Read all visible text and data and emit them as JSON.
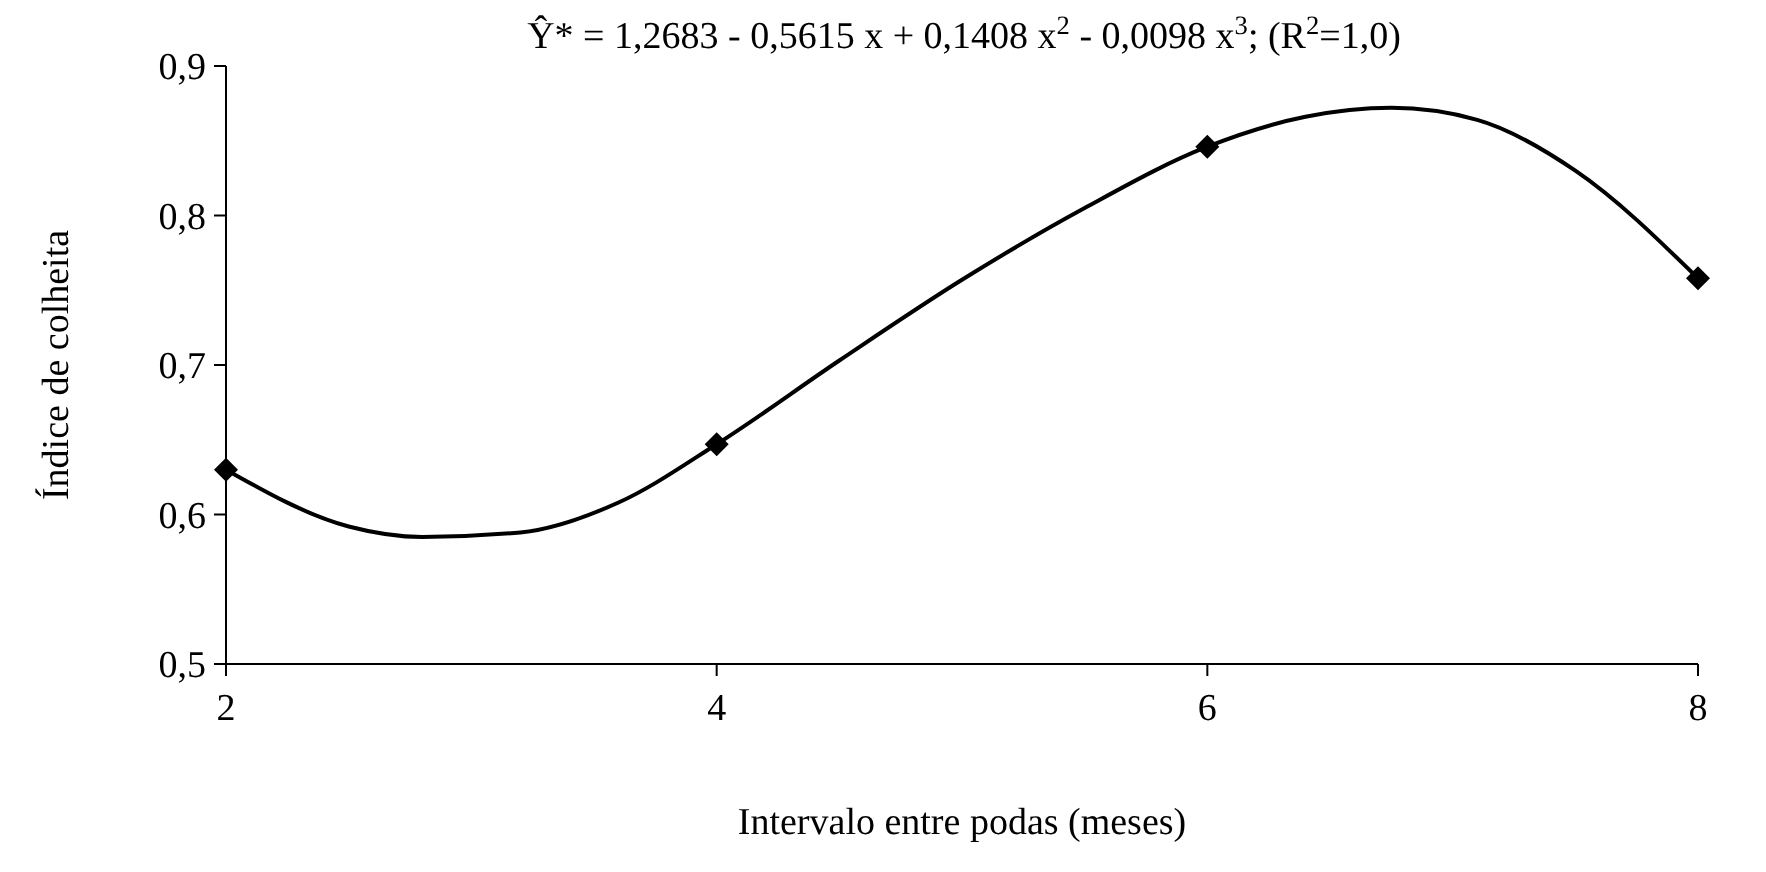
{
  "chart_data": {
    "type": "scatter",
    "xlabel": "Intervalo entre podas (meses)",
    "ylabel": "Índice de colheita",
    "annotations": [
      "Ŷ* = 1,2683 - 0,5615 x + 0,1408 x$^{2}$ - 0,0098 x$^{3}$; (R$^{2}$=1,0)"
    ],
    "xlim": [
      2,
      8
    ],
    "xticks": [
      2,
      4,
      6,
      8
    ],
    "ylim": [
      0.5,
      0.9
    ],
    "yticks": [
      {
        "value": 0.5,
        "label": "0,5"
      },
      {
        "value": 0.6,
        "label": "0,6"
      },
      {
        "value": 0.7,
        "label": "0,7"
      },
      {
        "value": 0.8,
        "label": "0,8"
      },
      {
        "value": 0.9,
        "label": "0,9"
      }
    ],
    "grid": false,
    "series": [
      {
        "type": "line",
        "color": "#000000",
        "marker": "none",
        "line_style": "solid",
        "x": [
          2,
          2.5,
          2.8,
          3.2,
          3.6,
          4,
          4.5,
          5,
          5.5,
          6,
          6.4,
          6.75,
          7.1,
          7.5,
          8
        ],
        "values": [
          0.63,
          0.592,
          0.585,
          0.588,
          0.608,
          0.647,
          0.703,
          0.757,
          0.805,
          0.846,
          0.866,
          0.872,
          0.864,
          0.83,
          0.758
        ]
      },
      {
        "color": "#000000",
        "marker": "diamond",
        "x": [
          2,
          4,
          6,
          8
        ],
        "values": [
          0.63,
          0.647,
          0.846,
          0.758
        ]
      }
    ]
  }
}
